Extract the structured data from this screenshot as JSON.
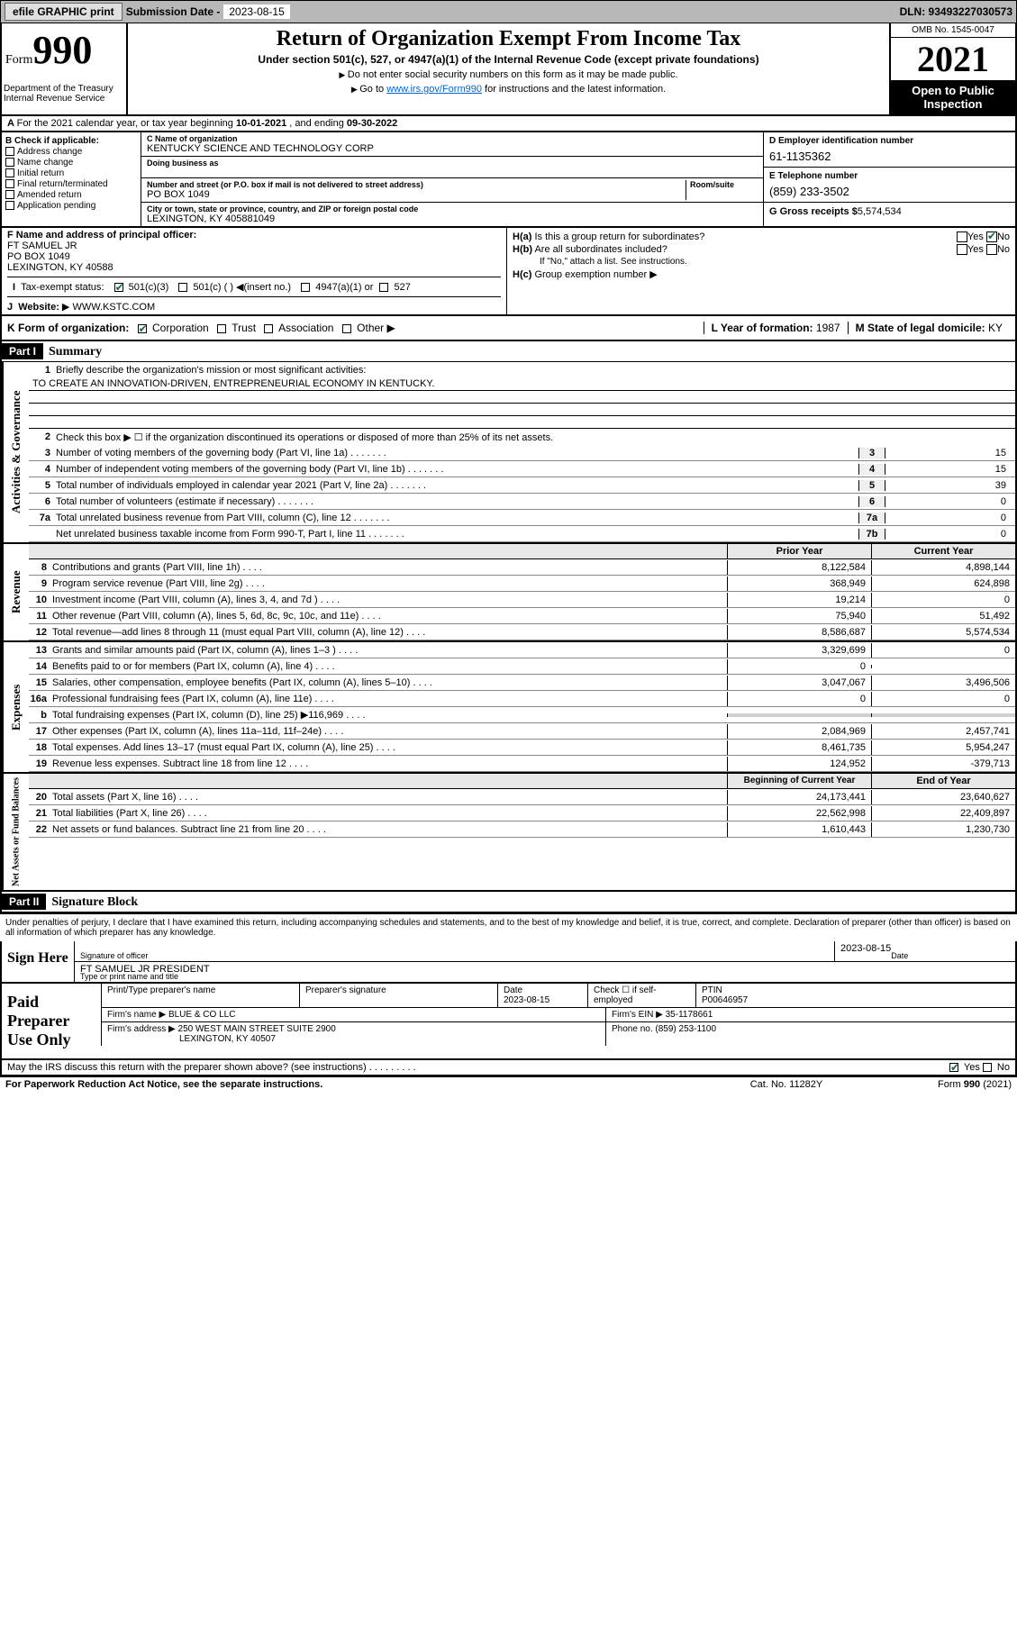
{
  "topbar": {
    "efile_btn": "efile GRAPHIC print",
    "sub_label": "Submission Date -",
    "sub_date": "2023-08-15",
    "dln": "DLN: 93493227030573"
  },
  "header": {
    "form_word": "Form",
    "form_num": "990",
    "dept": "Department of the Treasury\nInternal Revenue Service",
    "title": "Return of Organization Exempt From Income Tax",
    "subtitle": "Under section 501(c), 527, or 4947(a)(1) of the Internal Revenue Code (except private foundations)",
    "note1": "Do not enter social security numbers on this form as it may be made public.",
    "note2_pre": "Go to ",
    "note2_link": "www.irs.gov/Form990",
    "note2_post": " for instructions and the latest information.",
    "omb": "OMB No. 1545-0047",
    "year": "2021",
    "inspect": "Open to Public Inspection"
  },
  "rowA": {
    "text_pre": "For the 2021 calendar year, or tax year beginning ",
    "begin": "10-01-2021",
    "mid": " , and ending ",
    "end": "09-30-2022"
  },
  "colB": {
    "label": "B Check if applicable:",
    "items": [
      "Address change",
      "Name change",
      "Initial return",
      "Final return/terminated",
      "Amended return",
      "Application pending"
    ]
  },
  "colC": {
    "name_lbl": "C Name of organization",
    "name": "KENTUCKY SCIENCE AND TECHNOLOGY CORP",
    "dba_lbl": "Doing business as",
    "dba": "",
    "street_lbl": "Number and street (or P.O. box if mail is not delivered to street address)",
    "room_lbl": "Room/suite",
    "street": "PO BOX 1049",
    "city_lbl": "City or town, state or province, country, and ZIP or foreign postal code",
    "city": "LEXINGTON, KY  405881049"
  },
  "colD": {
    "ein_lbl": "D Employer identification number",
    "ein": "61-1135362",
    "phone_lbl": "E Telephone number",
    "phone": "(859) 233-3502",
    "gross_lbl": "G Gross receipts $",
    "gross": "5,574,534"
  },
  "rowF": {
    "label": "F Name and address of principal officer:",
    "name": "FT SAMUEL JR",
    "addr1": "PO BOX 1049",
    "addr2": "LEXINGTON, KY  40588"
  },
  "rowH": {
    "ha": "Is this a group return for subordinates?",
    "hb": "Are all subordinates included?",
    "hb_note": "If \"No,\" attach a list. See instructions.",
    "hc": "Group exemption number"
  },
  "rowI": {
    "label": "Tax-exempt status:",
    "opts": [
      "501(c)(3)",
      "501(c) (  )",
      "(insert no.)",
      "4947(a)(1) or",
      "527"
    ]
  },
  "rowJ": {
    "label": "Website:",
    "val": "WWW.KSTC.COM"
  },
  "rowK": {
    "label": "K Form of organization:",
    "opts": [
      "Corporation",
      "Trust",
      "Association",
      "Other"
    ],
    "l_label": "L Year of formation:",
    "l_val": "1987",
    "m_label": "M State of legal domicile:",
    "m_val": "KY"
  },
  "part1": {
    "hdr": "Part I",
    "title": "Summary",
    "l1": "Briefly describe the organization's mission or most significant activities:",
    "mission": "TO CREATE AN INNOVATION-DRIVEN, ENTREPRENEURIAL ECONOMY IN KENTUCKY.",
    "l2": "Check this box ▶ ☐ if the organization discontinued its operations or disposed of more than 25% of its net assets.",
    "gov_lines": [
      {
        "n": "3",
        "t": "Number of voting members of the governing body (Part VI, line 1a)",
        "box": "3",
        "v": "15"
      },
      {
        "n": "4",
        "t": "Number of independent voting members of the governing body (Part VI, line 1b)",
        "box": "4",
        "v": "15"
      },
      {
        "n": "5",
        "t": "Total number of individuals employed in calendar year 2021 (Part V, line 2a)",
        "box": "5",
        "v": "39"
      },
      {
        "n": "6",
        "t": "Total number of volunteers (estimate if necessary)",
        "box": "6",
        "v": "0"
      },
      {
        "n": "7a",
        "t": "Total unrelated business revenue from Part VIII, column (C), line 12",
        "box": "7a",
        "v": "0"
      },
      {
        "n": "",
        "t": "Net unrelated business taxable income from Form 990-T, Part I, line 11",
        "box": "7b",
        "v": "0"
      }
    ],
    "col_prior": "Prior Year",
    "col_current": "Current Year",
    "rev_lines": [
      {
        "n": "8",
        "t": "Contributions and grants (Part VIII, line 1h)",
        "p": "8,122,584",
        "c": "4,898,144"
      },
      {
        "n": "9",
        "t": "Program service revenue (Part VIII, line 2g)",
        "p": "368,949",
        "c": "624,898"
      },
      {
        "n": "10",
        "t": "Investment income (Part VIII, column (A), lines 3, 4, and 7d )",
        "p": "19,214",
        "c": "0"
      },
      {
        "n": "11",
        "t": "Other revenue (Part VIII, column (A), lines 5, 6d, 8c, 9c, 10c, and 11e)",
        "p": "75,940",
        "c": "51,492"
      },
      {
        "n": "12",
        "t": "Total revenue—add lines 8 through 11 (must equal Part VIII, column (A), line 12)",
        "p": "8,586,687",
        "c": "5,574,534"
      }
    ],
    "exp_lines": [
      {
        "n": "13",
        "t": "Grants and similar amounts paid (Part IX, column (A), lines 1–3 )",
        "p": "3,329,699",
        "c": "0"
      },
      {
        "n": "14",
        "t": "Benefits paid to or for members (Part IX, column (A), line 4)",
        "p": "0",
        "c": ""
      },
      {
        "n": "15",
        "t": "Salaries, other compensation, employee benefits (Part IX, column (A), lines 5–10)",
        "p": "3,047,067",
        "c": "3,496,506"
      },
      {
        "n": "16a",
        "t": "Professional fundraising fees (Part IX, column (A), line 11e)",
        "p": "0",
        "c": "0"
      },
      {
        "n": "b",
        "t": "Total fundraising expenses (Part IX, column (D), line 25) ▶116,969",
        "p": "SHADE",
        "c": "SHADE"
      },
      {
        "n": "17",
        "t": "Other expenses (Part IX, column (A), lines 11a–11d, 11f–24e)",
        "p": "2,084,969",
        "c": "2,457,741"
      },
      {
        "n": "18",
        "t": "Total expenses. Add lines 13–17 (must equal Part IX, column (A), line 25)",
        "p": "8,461,735",
        "c": "5,954,247"
      },
      {
        "n": "19",
        "t": "Revenue less expenses. Subtract line 18 from line 12",
        "p": "124,952",
        "c": "-379,713"
      }
    ],
    "col_begin": "Beginning of Current Year",
    "col_end": "End of Year",
    "net_lines": [
      {
        "n": "20",
        "t": "Total assets (Part X, line 16)",
        "p": "24,173,441",
        "c": "23,640,627"
      },
      {
        "n": "21",
        "t": "Total liabilities (Part X, line 26)",
        "p": "22,562,998",
        "c": "22,409,897"
      },
      {
        "n": "22",
        "t": "Net assets or fund balances. Subtract line 21 from line 20",
        "p": "1,610,443",
        "c": "1,230,730"
      }
    ]
  },
  "part2": {
    "hdr": "Part II",
    "title": "Signature Block",
    "decl": "Under penalties of perjury, I declare that I have examined this return, including accompanying schedules and statements, and to the best of my knowledge and belief, it is true, correct, and complete. Declaration of preparer (other than officer) is based on all information of which preparer has any knowledge.",
    "sign_here": "Sign Here",
    "sig_officer_lbl": "Signature of officer",
    "date_lbl": "Date",
    "sig_date": "2023-08-15",
    "officer_name": "FT SAMUEL JR  PRESIDENT",
    "officer_lbl": "Type or print name and title",
    "paid": "Paid Preparer Use Only",
    "prep_name_lbl": "Print/Type preparer's name",
    "prep_sig_lbl": "Preparer's signature",
    "prep_date": "2023-08-15",
    "check_lbl": "Check ☐ if self-employed",
    "ptin_lbl": "PTIN",
    "ptin": "P00646957",
    "firm_name_lbl": "Firm's name",
    "firm_name": "BLUE & CO LLC",
    "firm_ein_lbl": "Firm's EIN",
    "firm_ein": "35-1178661",
    "firm_addr_lbl": "Firm's address",
    "firm_addr": "250 WEST MAIN STREET SUITE 2900",
    "firm_city": "LEXINGTON, KY  40507",
    "firm_phone_lbl": "Phone no.",
    "firm_phone": "(859) 253-1100",
    "discuss": "May the IRS discuss this return with the preparer shown above? (see instructions)"
  },
  "footer": {
    "left": "For Paperwork Reduction Act Notice, see the separate instructions.",
    "mid": "Cat. No. 11282Y",
    "right": "Form 990 (2021)"
  },
  "side_labels": {
    "gov": "Activities & Governance",
    "rev": "Revenue",
    "exp": "Expenses",
    "net": "Net Assets or Fund Balances"
  }
}
